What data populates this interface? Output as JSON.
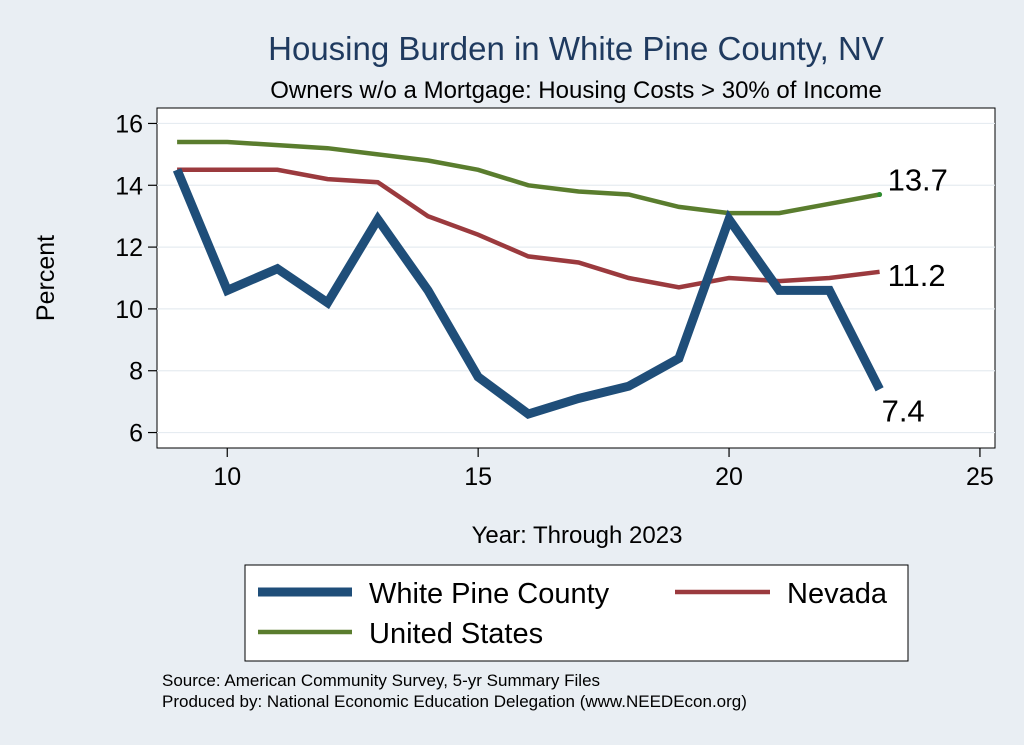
{
  "chart_data": {
    "type": "line",
    "title": "Housing Burden in White Pine County, NV",
    "subtitle": "Owners w/o a Mortgage: Housing Costs > 30% of Income",
    "xlabel": "Year: Through 2023",
    "ylabel": "Percent",
    "xlim": [
      8.6,
      25.3
    ],
    "ylim": [
      5.5,
      16.5
    ],
    "xticks": [
      10,
      15,
      20,
      25
    ],
    "yticks": [
      6,
      8,
      10,
      12,
      14,
      16
    ],
    "grid": true,
    "legend_position": "bottom",
    "x": [
      9,
      10,
      11,
      12,
      13,
      14,
      15,
      16,
      17,
      18,
      19,
      20,
      21,
      22,
      23
    ],
    "series": [
      {
        "name": "White Pine County",
        "color": "#1f4e79",
        "width": 9,
        "values": [
          14.5,
          10.6,
          11.3,
          10.2,
          12.9,
          10.6,
          7.8,
          6.6,
          7.1,
          7.5,
          8.4,
          12.9,
          10.6,
          10.6,
          7.4
        ],
        "end_label": "7.4"
      },
      {
        "name": "Nevada",
        "color": "#9b3a3e",
        "width": 4.5,
        "values": [
          14.5,
          14.5,
          14.5,
          14.2,
          14.1,
          13.0,
          12.4,
          11.7,
          11.5,
          11.0,
          10.7,
          11.0,
          10.9,
          11.0,
          11.2
        ],
        "end_label": "11.2"
      },
      {
        "name": "United States",
        "color": "#5a7d2e",
        "width": 4.5,
        "values": [
          15.4,
          15.4,
          15.3,
          15.2,
          15.0,
          14.8,
          14.5,
          14.0,
          13.8,
          13.7,
          13.3,
          13.1,
          13.1,
          13.4,
          13.7
        ],
        "end_label": "13.7"
      }
    ],
    "source_lines": [
      "Source: American Community Survey, 5-yr Summary Files",
      "Produced by: National Economic Education Delegation (www.NEEDEcon.org)"
    ]
  }
}
